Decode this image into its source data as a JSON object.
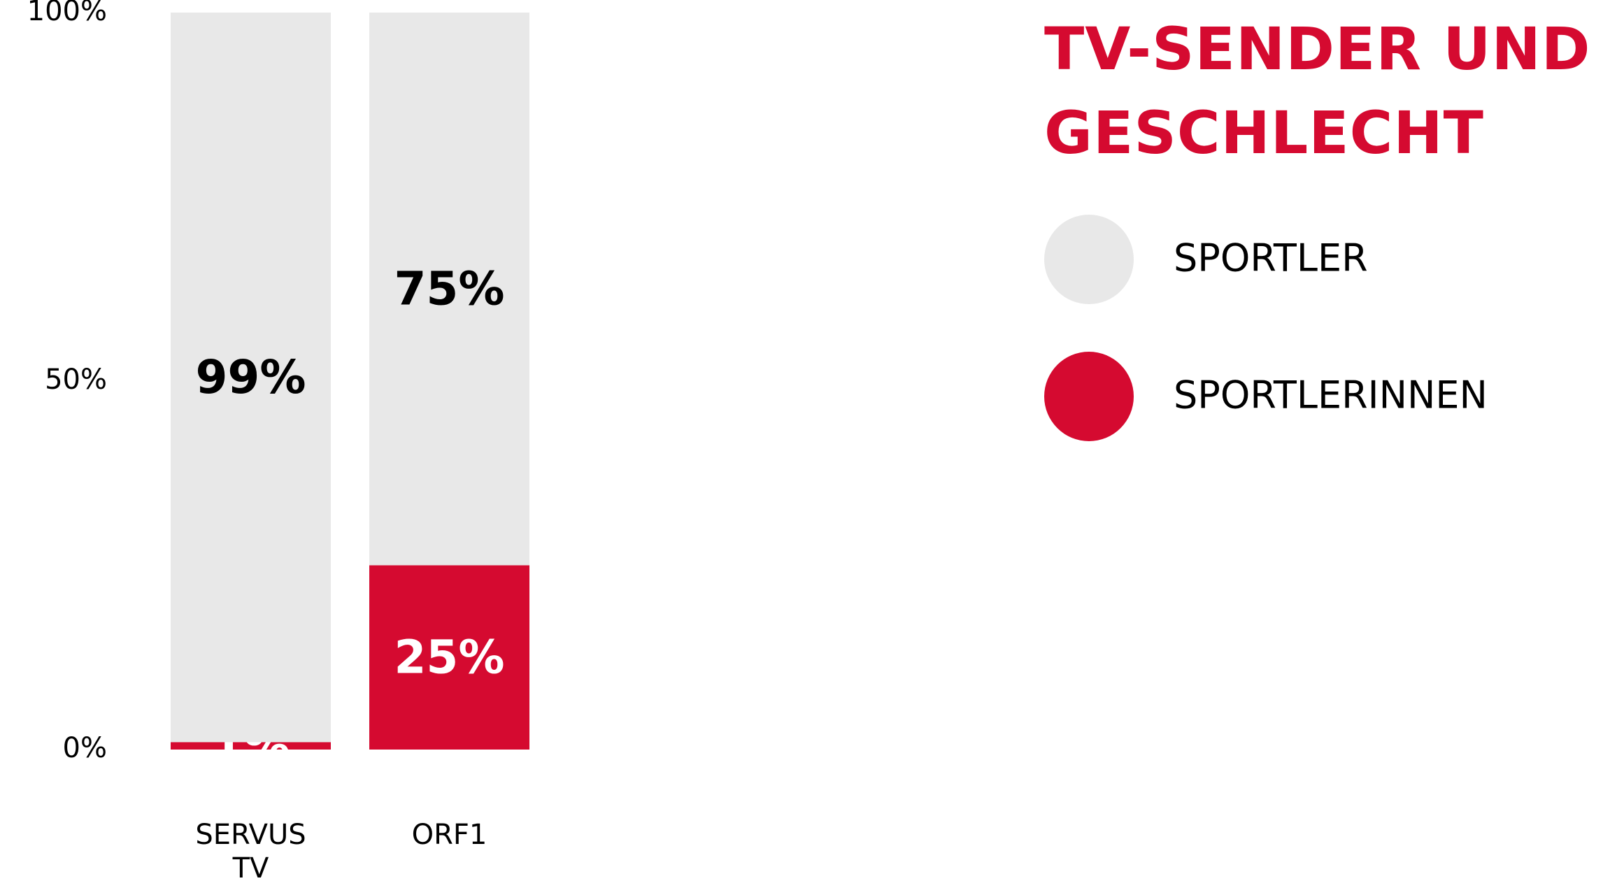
{
  "chart_data": {
    "type": "stacked_bar",
    "title": "TV-SENDER UND GESCHLECHT",
    "categories": [
      "SERVUS TV",
      "ORF1"
    ],
    "series": [
      {
        "name": "SPORTLER",
        "color": "#e8e8e8",
        "values": [
          99,
          75
        ],
        "value_labels": [
          "99%",
          "75%"
        ]
      },
      {
        "name": "SPORTLERINNEN",
        "color": "#d50a30",
        "values": [
          1,
          25
        ],
        "value_labels": [
          "1%",
          "25%"
        ]
      }
    ],
    "ylim": [
      0,
      100
    ],
    "yticks": [
      {
        "value": 0,
        "label": "0%"
      },
      {
        "value": 50,
        "label": "50%"
      },
      {
        "value": 100,
        "label": "100%"
      }
    ],
    "legend": "right"
  }
}
